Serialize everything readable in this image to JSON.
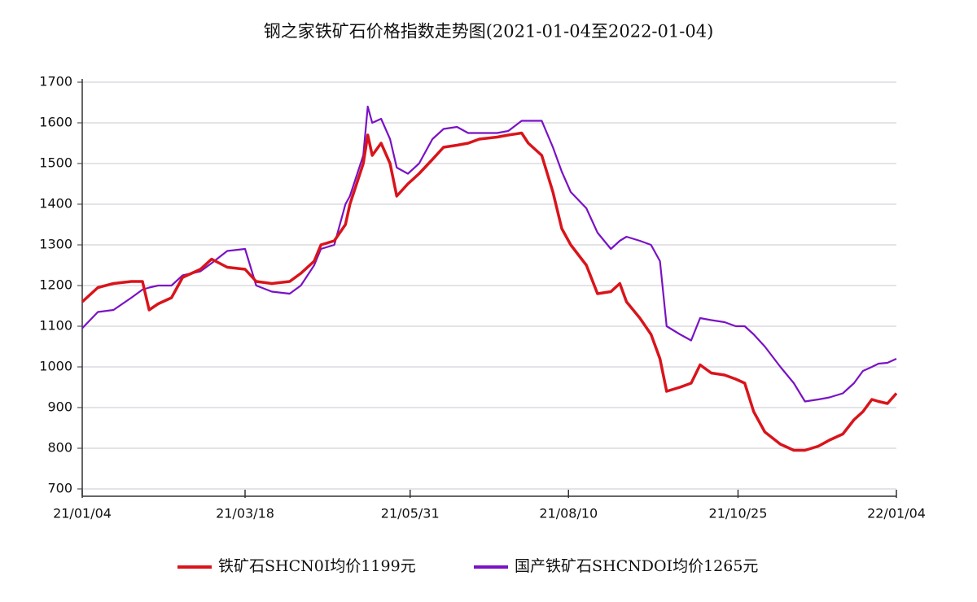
{
  "chart_data": {
    "type": "line",
    "title": "钢之家铁矿石价格指数走势图(2021-01-04至2022-01-04)",
    "x": [
      "21/01/04",
      "21/01/11",
      "21/01/18",
      "21/01/26",
      "21/01/31",
      "21/02/03",
      "21/02/07",
      "21/02/13",
      "21/02/18",
      "21/02/26",
      "21/03/03",
      "21/03/10",
      "21/03/18",
      "21/03/23",
      "21/03/30",
      "21/04/07",
      "21/04/12",
      "21/04/18",
      "21/04/21",
      "21/04/27",
      "21/05/02",
      "21/05/04",
      "21/05/10",
      "21/05/12",
      "21/05/14",
      "21/05/18",
      "21/05/22",
      "21/05/25",
      "21/05/30",
      "21/06/04",
      "21/06/10",
      "21/06/15",
      "21/06/21",
      "21/06/26",
      "21/07/01",
      "21/07/09",
      "21/07/14",
      "21/07/20",
      "21/07/23",
      "21/07/29",
      "21/08/03",
      "21/08/07",
      "21/08/11",
      "21/08/18",
      "21/08/23",
      "21/08/29",
      "21/09/02",
      "21/09/05",
      "21/09/11",
      "21/09/16",
      "21/09/20",
      "21/09/23",
      "21/09/29",
      "21/10/04",
      "21/10/08",
      "21/10/13",
      "21/10/19",
      "21/10/24",
      "21/10/28",
      "21/11/01",
      "21/11/06",
      "21/11/13",
      "21/11/19",
      "21/11/24",
      "21/11/30",
      "21/12/05",
      "21/12/11",
      "21/12/16",
      "21/12/20",
      "21/12/24",
      "21/12/27",
      "21/12/31",
      "22/01/04"
    ],
    "series": [
      {
        "name": "铁矿石SHCN0I均价1199元",
        "color": "#d9141b",
        "values": [
          1160,
          1195,
          1205,
          1210,
          1210,
          1140,
          1155,
          1170,
          1220,
          1240,
          1265,
          1245,
          1240,
          1210,
          1205,
          1210,
          1230,
          1260,
          1300,
          1310,
          1350,
          1400,
          1500,
          1570,
          1520,
          1550,
          1500,
          1420,
          1450,
          1475,
          1510,
          1540,
          1545,
          1550,
          1560,
          1565,
          1570,
          1575,
          1550,
          1520,
          1430,
          1340,
          1300,
          1250,
          1180,
          1185,
          1205,
          1160,
          1120,
          1080,
          1020,
          940,
          950,
          960,
          1005,
          985,
          980,
          970,
          960,
          890,
          840,
          810,
          795,
          795,
          805,
          820,
          835,
          870,
          890,
          920,
          915,
          910,
          935
        ]
      },
      {
        "name": "国产铁矿石SHCNDOI均价1265元",
        "color": "#7a12c4",
        "values": [
          1095,
          1135,
          1140,
          1170,
          1190,
          1195,
          1200,
          1200,
          1225,
          1235,
          1255,
          1285,
          1290,
          1200,
          1185,
          1180,
          1200,
          1250,
          1290,
          1300,
          1400,
          1420,
          1520,
          1640,
          1600,
          1610,
          1560,
          1490,
          1475,
          1500,
          1560,
          1585,
          1590,
          1575,
          1575,
          1575,
          1580,
          1605,
          1605,
          1605,
          1540,
          1480,
          1430,
          1390,
          1330,
          1290,
          1310,
          1320,
          1310,
          1300,
          1260,
          1100,
          1080,
          1065,
          1120,
          1115,
          1110,
          1100,
          1100,
          1080,
          1050,
          1000,
          960,
          915,
          920,
          925,
          935,
          960,
          990,
          1000,
          1008,
          1010,
          1020
        ]
      }
    ],
    "xlim": [
      "21/01/04",
      "22/01/04"
    ],
    "xticks": [
      "21/01/04",
      "21/03/18",
      "21/05/31",
      "21/08/10",
      "21/10/25",
      "22/01/04"
    ],
    "ylim": [
      700,
      1700
    ],
    "yticks": [
      700,
      800,
      900,
      1000,
      1100,
      1200,
      1300,
      1400,
      1500,
      1600,
      1700
    ],
    "grid": true,
    "legend": "bottom"
  }
}
